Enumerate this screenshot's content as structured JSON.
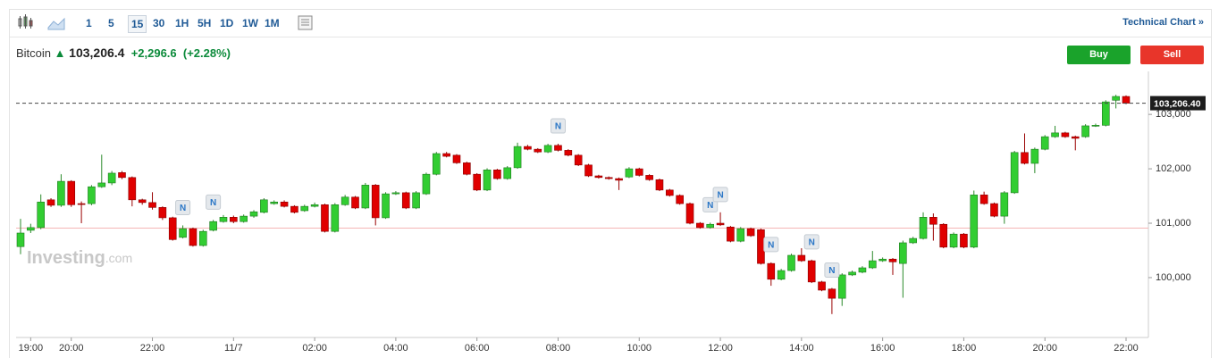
{
  "toolbar": {
    "intervals": [
      "1",
      "5",
      "15",
      "30",
      "1H",
      "5H",
      "1D",
      "1W",
      "1M"
    ],
    "active": "15",
    "link": "Technical Chart »"
  },
  "header": {
    "name": "Bitcoin",
    "price": "103,206.4",
    "change": "+2,296.6",
    "change_pct": "(+2.28%)",
    "buy": "Buy",
    "sell": "Sell"
  },
  "watermark": {
    "brand": "Investing",
    "suffix": ".com"
  },
  "chart_data": {
    "type": "candlestick",
    "categories": [
      "18:45",
      "19:00",
      "19:15",
      "19:30",
      "19:45",
      "20:00",
      "20:15",
      "20:30",
      "20:45",
      "21:00",
      "21:15",
      "21:30",
      "21:45",
      "22:00",
      "22:15",
      "22:30",
      "22:45",
      "23:00",
      "23:15",
      "23:30",
      "23:45",
      "00:00",
      "00:15",
      "00:30",
      "00:45",
      "01:00",
      "01:15",
      "01:30",
      "01:45",
      "02:00",
      "02:15",
      "02:30",
      "02:45",
      "03:00",
      "03:15",
      "03:30",
      "03:45",
      "04:00",
      "04:15",
      "04:30",
      "04:45",
      "05:00",
      "05:15",
      "05:30",
      "05:45",
      "06:00",
      "06:15",
      "06:30",
      "06:45",
      "07:00",
      "07:15",
      "07:30",
      "07:45",
      "08:00",
      "08:15",
      "08:30",
      "08:45",
      "09:00",
      "09:15",
      "09:30",
      "09:45",
      "10:00",
      "10:15",
      "10:30",
      "10:45",
      "11:00",
      "11:15",
      "11:30",
      "11:45",
      "12:00",
      "12:15",
      "12:30",
      "12:45",
      "13:00",
      "13:15",
      "13:30",
      "13:45",
      "14:00",
      "14:15",
      "14:30",
      "14:45",
      "15:00",
      "15:15",
      "15:30",
      "15:45",
      "16:00",
      "16:15",
      "16:30",
      "16:45",
      "17:00",
      "17:15",
      "17:30",
      "17:45",
      "18:00",
      "18:15",
      "18:30",
      "18:45",
      "19:00",
      "19:15",
      "19:30",
      "19:45",
      "20:00",
      "20:15",
      "20:30",
      "20:45",
      "21:00",
      "21:15",
      "21:30",
      "21:45",
      "22:00"
    ],
    "open": [
      100570,
      100870,
      100920,
      101430,
      101330,
      101770,
      101360,
      101360,
      101670,
      101740,
      101930,
      101840,
      101430,
      101380,
      101290,
      101100,
      100740,
      100900,
      100590,
      100870,
      101030,
      101110,
      101030,
      101130,
      101200,
      101360,
      101390,
      101310,
      101230,
      101310,
      101340,
      100850,
      101340,
      101480,
      101280,
      101700,
      101100,
      101540,
      101560,
      101280,
      101540,
      101900,
      102280,
      102250,
      102110,
      101900,
      101610,
      101980,
      101820,
      102020,
      102410,
      102360,
      102310,
      102430,
      102340,
      102250,
      102070,
      101870,
      101840,
      101820,
      101850,
      102000,
      101880,
      101800,
      101610,
      101510,
      101360,
      101000,
      100920,
      101000,
      100930,
      100670,
      100900,
      100880,
      100260,
      99970,
      100130,
      100410,
      100310,
      99920,
      99790,
      99620,
      100050,
      100100,
      100180,
      100310,
      100340,
      100260,
      100640,
      100720,
      101110,
      100980,
      100560,
      100800,
      100560,
      101520,
      101360,
      101130,
      101560,
      102300,
      102100,
      102360,
      102590,
      102660,
      102590,
      102590,
      102790,
      102800,
      103260,
      103330
    ],
    "high": [
      101080,
      100990,
      101530,
      101460,
      101900,
      101790,
      101400,
      101700,
      102260,
      101960,
      101960,
      101860,
      101450,
      101570,
      101310,
      101120,
      100960,
      100920,
      100880,
      101060,
      101150,
      101140,
      101160,
      101240,
      101460,
      101420,
      101420,
      101330,
      101340,
      101380,
      101360,
      101370,
      101520,
      101500,
      101740,
      101720,
      101570,
      101590,
      101580,
      101590,
      101930,
      102310,
      102310,
      102270,
      102130,
      101920,
      102010,
      102000,
      102050,
      102480,
      102440,
      102380,
      102460,
      102460,
      102360,
      102270,
      102090,
      101890,
      101860,
      101840,
      102030,
      102020,
      101900,
      101820,
      101630,
      101530,
      101380,
      101020,
      101010,
      101200,
      100950,
      100930,
      100920,
      100900,
      100280,
      100160,
      100440,
      100540,
      100330,
      99940,
      99810,
      100080,
      100130,
      100210,
      100490,
      100370,
      100360,
      100680,
      100750,
      101200,
      101180,
      101000,
      100830,
      100820,
      101600,
      101580,
      101380,
      101590,
      102330,
      102650,
      102390,
      102620,
      102790,
      102680,
      102610,
      102820,
      102830,
      103260,
      103360,
      103350
    ],
    "low": [
      100430,
      100820,
      100890,
      101300,
      101300,
      101300,
      101000,
      101330,
      101650,
      101700,
      101810,
      101310,
      101340,
      101250,
      101060,
      100680,
      100720,
      100570,
      100570,
      100850,
      101010,
      101000,
      101010,
      101100,
      101180,
      101340,
      101290,
      101180,
      101210,
      101290,
      100830,
      100830,
      101320,
      101260,
      101260,
      100960,
      101080,
      101520,
      101260,
      101260,
      101520,
      101880,
      102210,
      102090,
      101880,
      101590,
      101590,
      101800,
      101800,
      102000,
      102340,
      102290,
      102290,
      102320,
      102230,
      102050,
      101850,
      101820,
      101800,
      101610,
      101830,
      101860,
      101780,
      101590,
      101490,
      101340,
      100980,
      100900,
      100900,
      100950,
      100650,
      100650,
      100750,
      100240,
      99850,
      99950,
      100110,
      100290,
      99900,
      99750,
      99330,
      99480,
      100030,
      100080,
      100160,
      100290,
      100050,
      99630,
      100620,
      100700,
      100680,
      100540,
      100540,
      100540,
      100540,
      101340,
      101110,
      100990,
      101540,
      102080,
      101920,
      102340,
      102570,
      102570,
      102340,
      102570,
      102770,
      102780,
      103110,
      103190
    ],
    "close": [
      100820,
      100920,
      101390,
      101330,
      101770,
      101340,
      101350,
      101670,
      101740,
      101920,
      101840,
      101430,
      101380,
      101290,
      101100,
      100700,
      100900,
      100590,
      100850,
      101030,
      101110,
      101030,
      101130,
      101210,
      101430,
      101390,
      101310,
      101200,
      101310,
      101340,
      100850,
      101340,
      101480,
      101280,
      101700,
      101100,
      101540,
      101560,
      101280,
      101560,
      101900,
      102280,
      102230,
      102110,
      101900,
      101610,
      101980,
      101820,
      102020,
      102410,
      102360,
      102310,
      102430,
      102340,
      102250,
      102070,
      101870,
      101840,
      101820,
      101790,
      102000,
      101880,
      101800,
      101610,
      101510,
      101360,
      101000,
      100920,
      100980,
      100970,
      100670,
      100900,
      100770,
      100260,
      99970,
      100130,
      100410,
      100310,
      99920,
      99770,
      99620,
      100050,
      100100,
      100180,
      100310,
      100340,
      100290,
      100640,
      100720,
      101110,
      100980,
      100560,
      100800,
      100560,
      101520,
      101360,
      101130,
      101560,
      102300,
      102100,
      102360,
      102590,
      102660,
      102590,
      102560,
      102790,
      102800,
      103230,
      103330,
      103206.4
    ],
    "up_color": "#32cd32",
    "down_color": "#e00000",
    "last_price": {
      "value": 103206.4,
      "label": "103,206.40"
    },
    "prev_close": 100909.8,
    "news": {
      "label": "N",
      "at": [
        "22:45",
        "23:30",
        "08:00",
        "11:45",
        "12:00",
        "13:15",
        "14:15",
        "14:45"
      ]
    },
    "ylim": [
      98900,
      103790
    ],
    "yticks": [
      {
        "value": 100000,
        "label": "100,000"
      },
      {
        "value": 101000,
        "label": "101,000"
      },
      {
        "value": 102000,
        "label": "102,000"
      },
      {
        "value": 103000,
        "label": "103,000"
      }
    ],
    "xticks": [
      "19:00",
      "20:00",
      "22:00",
      {
        "value": "00:00",
        "label": "11/7"
      },
      "02:00",
      "04:00",
      "06:00",
      "08:00",
      "10:00",
      "12:00",
      "14:00",
      "16:00",
      "18:00",
      "20:00",
      "22:00"
    ]
  }
}
